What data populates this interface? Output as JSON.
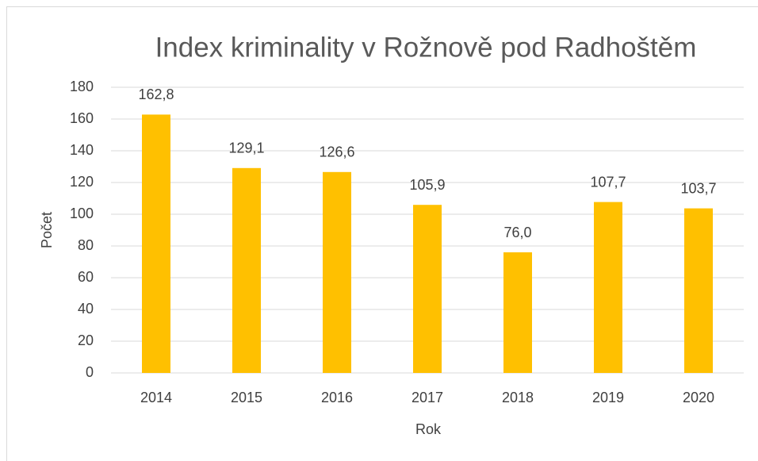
{
  "chart_data": {
    "type": "bar",
    "title": "Index kriminality v Rožnově pod Radhoštěm",
    "x_label": "Rok",
    "y_label": "Počet",
    "categories": [
      "2014",
      "2015",
      "2016",
      "2017",
      "2018",
      "2019",
      "2020"
    ],
    "values": [
      162.8,
      129.1,
      126.6,
      105.9,
      76.0,
      107.7,
      103.7
    ],
    "value_labels": [
      "162,8",
      "129,1",
      "126,6",
      "105,9",
      "76,0",
      "107,7",
      "103,7"
    ],
    "color": "#ffc000",
    "ylim": [
      0,
      180
    ],
    "yticks": [
      0,
      20,
      40,
      60,
      80,
      100,
      120,
      140,
      160,
      180
    ],
    "grid": true
  }
}
